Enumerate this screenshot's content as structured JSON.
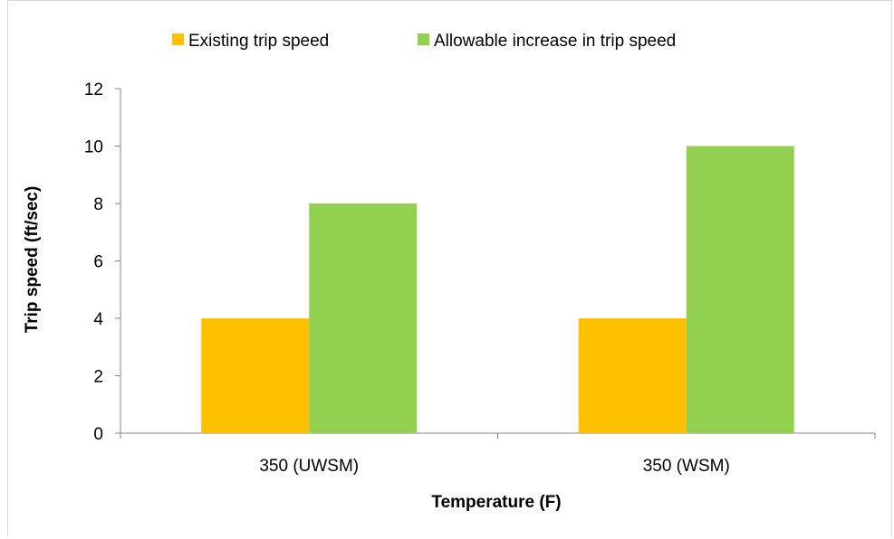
{
  "chart_data": {
    "type": "bar",
    "categories": [
      "350 (UWSM)",
      "350 (WSM)"
    ],
    "series": [
      {
        "name": "Existing trip speed",
        "values": [
          4,
          4
        ],
        "color": "#ffc000"
      },
      {
        "name": "Allowable increase in trip speed",
        "values": [
          8,
          10
        ],
        "color": "#92d050"
      }
    ],
    "xlabel": "Temperature (F)",
    "ylabel": "Trip speed (ft/sec)",
    "ylim": [
      0,
      12
    ],
    "yticks": [
      0,
      2,
      4,
      6,
      8,
      10,
      12
    ],
    "grid": false,
    "legend_position": "top"
  }
}
